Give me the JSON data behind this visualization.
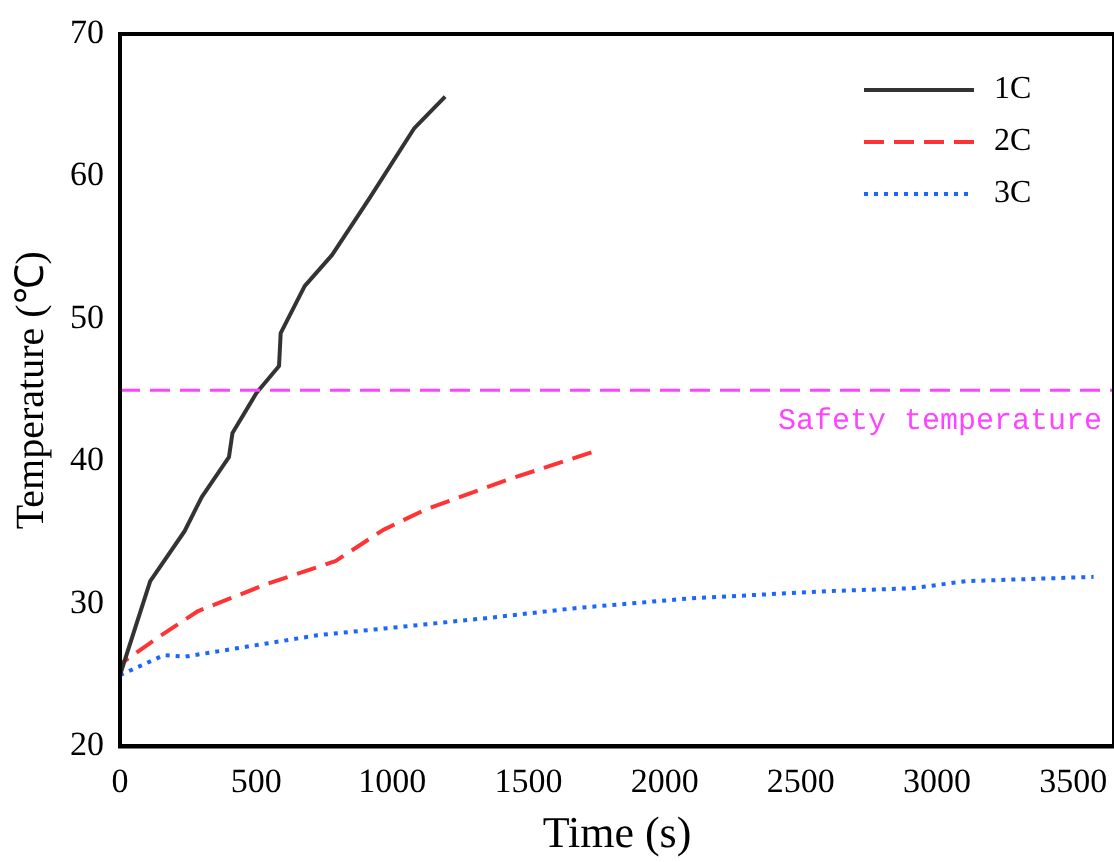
{
  "chart_data": {
    "type": "line",
    "xlabel": "Time (s)",
    "ylabel": "Temperature (℃)",
    "xlim": [
      0,
      3650
    ],
    "xticks": [
      0,
      500,
      1000,
      1500,
      2000,
      2500,
      3000,
      3500
    ],
    "ylim": [
      20,
      70
    ],
    "yticks": [
      20,
      30,
      40,
      50,
      60,
      70
    ],
    "grid": false,
    "legend": "top right",
    "marker": "none",
    "series": [
      {
        "name": "1C",
        "color": "#333333",
        "line_style": "solid",
        "x": [
          0,
          111,
          237,
          300,
          400,
          413,
          501,
          584,
          590,
          678,
          779,
          917,
          1081,
          1194
        ],
        "values": [
          25,
          31.6,
          35.1,
          37.5,
          40.3,
          42,
          44.8,
          46.7,
          49,
          52.3,
          54.5,
          58.5,
          63.4,
          65.6
        ]
      },
      {
        "name": "2C",
        "color": "#ff3333",
        "line_style": "dashed",
        "x": [
          0,
          10,
          136,
          287,
          539,
          791,
          967,
          1119,
          1421,
          1741
        ],
        "values": [
          25,
          25.9,
          27.6,
          29.5,
          31.4,
          33,
          35.2,
          36.6,
          38.7,
          40.7
        ]
      },
      {
        "name": "3C",
        "color": "#1a66ff",
        "line_style": "dotted",
        "x": [
          0,
          161,
          239,
          725,
          1345,
          1670,
          2101,
          2605,
          2908,
          3109,
          3575
        ],
        "values": [
          25,
          26.4,
          26.3,
          27.8,
          29,
          29.7,
          30.4,
          30.9,
          31.1,
          31.6,
          31.9
        ]
      }
    ],
    "ref_lines": [
      {
        "axis": "y",
        "value": 45,
        "label": "Safety temperature",
        "color": "#ff44ff",
        "line_style": "dashed"
      }
    ]
  }
}
